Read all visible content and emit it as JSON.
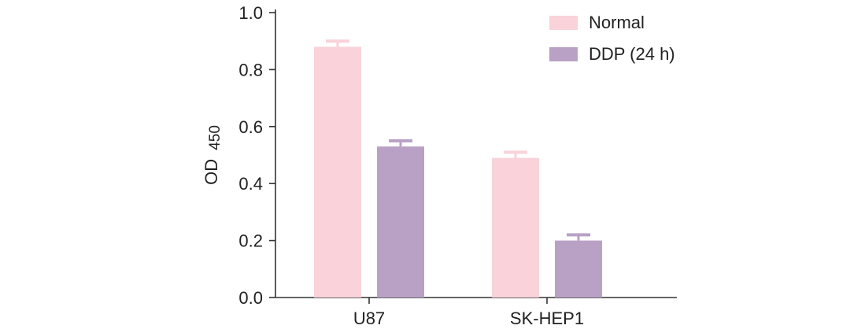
{
  "chart_data": {
    "type": "bar",
    "categories": [
      "U87",
      "SK-HEP1"
    ],
    "series": [
      {
        "name": "Normal",
        "values": [
          0.88,
          0.49
        ],
        "error": [
          0.02,
          0.02
        ],
        "color": "#f9d2da"
      },
      {
        "name": "DDP (24 h)",
        "values": [
          0.53,
          0.2
        ],
        "error": [
          0.02,
          0.02
        ],
        "color": "#b9a1c6"
      }
    ],
    "ylabel": {
      "main": "OD",
      "sub": "450"
    },
    "xlabel": "",
    "ylim": [
      0,
      1.0
    ],
    "yticks": [
      "0.0",
      "0.2",
      "0.4",
      "0.6",
      "0.8",
      "1.0"
    ],
    "grid": false,
    "legend_position": "top-right",
    "axis_color": "#333333"
  }
}
